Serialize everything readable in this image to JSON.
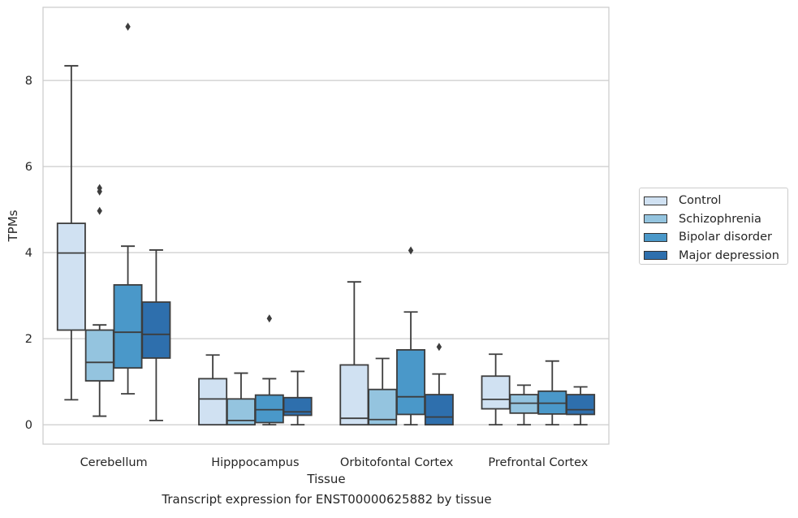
{
  "chart_data": {
    "type": "boxplot",
    "xlabel": "Tissue",
    "ylabel": "TPMs",
    "caption": "Transcript expression for ENST00000625882 by tissue",
    "categories": [
      "Cerebellum",
      "Hipppocampus",
      "Orbitofontal Cortex",
      "Prefrontal Cortex"
    ],
    "ylim": [
      -0.45,
      9.7
    ],
    "yticks": [
      0,
      2,
      4,
      6,
      8
    ],
    "grid": "horizontal",
    "legend_position": "right",
    "series": [
      {
        "name": "Control",
        "color": "#d0e1f2",
        "boxes": [
          {
            "whislo": 0.58,
            "q1": 2.2,
            "med": 3.99,
            "q3": 4.68,
            "whishi": 8.34,
            "fliers": []
          },
          {
            "whislo": 0.0,
            "q1": 0.0,
            "med": 0.6,
            "q3": 1.07,
            "whishi": 1.62,
            "fliers": []
          },
          {
            "whislo": 0.0,
            "q1": 0.0,
            "med": 0.15,
            "q3": 1.39,
            "whishi": 3.32,
            "fliers": []
          },
          {
            "whislo": 0.0,
            "q1": 0.37,
            "med": 0.59,
            "q3": 1.13,
            "whishi": 1.64,
            "fliers": []
          }
        ]
      },
      {
        "name": "Schizophrenia",
        "color": "#94c4df",
        "boxes": [
          {
            "whislo": 0.2,
            "q1": 1.02,
            "med": 1.45,
            "q3": 2.2,
            "whishi": 2.32,
            "fliers": [
              4.97,
              5.42,
              5.5
            ]
          },
          {
            "whislo": 0.0,
            "q1": 0.0,
            "med": 0.1,
            "q3": 0.6,
            "whishi": 1.2,
            "fliers": []
          },
          {
            "whislo": 0.0,
            "q1": 0.0,
            "med": 0.12,
            "q3": 0.82,
            "whishi": 1.54,
            "fliers": []
          },
          {
            "whislo": 0.0,
            "q1": 0.27,
            "med": 0.5,
            "q3": 0.7,
            "whishi": 0.92,
            "fliers": []
          }
        ]
      },
      {
        "name": "Bipolar disorder",
        "color": "#4a98c9",
        "boxes": [
          {
            "whislo": 0.72,
            "q1": 1.32,
            "med": 2.15,
            "q3": 3.25,
            "whishi": 4.15,
            "fliers": [
              9.25
            ]
          },
          {
            "whislo": 0.0,
            "q1": 0.05,
            "med": 0.35,
            "q3": 0.69,
            "whishi": 1.07,
            "fliers": [
              2.47
            ]
          },
          {
            "whislo": 0.0,
            "q1": 0.24,
            "med": 0.65,
            "q3": 1.74,
            "whishi": 2.62,
            "fliers": [
              4.05
            ]
          },
          {
            "whislo": 0.0,
            "q1": 0.25,
            "med": 0.5,
            "q3": 0.78,
            "whishi": 1.48,
            "fliers": []
          }
        ]
      },
      {
        "name": "Major depression",
        "color": "#2e6fad",
        "boxes": [
          {
            "whislo": 0.1,
            "q1": 1.55,
            "med": 2.1,
            "q3": 2.85,
            "whishi": 4.06,
            "fliers": []
          },
          {
            "whislo": 0.0,
            "q1": 0.22,
            "med": 0.3,
            "q3": 0.63,
            "whishi": 1.24,
            "fliers": []
          },
          {
            "whislo": 0.0,
            "q1": 0.0,
            "med": 0.18,
            "q3": 0.7,
            "whishi": 1.18,
            "fliers": [
              1.81
            ]
          },
          {
            "whislo": 0.0,
            "q1": 0.24,
            "med": 0.35,
            "q3": 0.7,
            "whishi": 0.88,
            "fliers": []
          }
        ]
      }
    ]
  }
}
